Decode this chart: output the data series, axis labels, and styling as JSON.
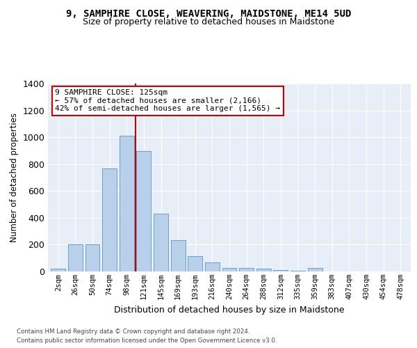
{
  "title": "9, SAMPHIRE CLOSE, WEAVERING, MAIDSTONE, ME14 5UD",
  "subtitle": "Size of property relative to detached houses in Maidstone",
  "xlabel": "Distribution of detached houses by size in Maidstone",
  "ylabel": "Number of detached properties",
  "categories": [
    "2sqm",
    "26sqm",
    "50sqm",
    "74sqm",
    "98sqm",
    "121sqm",
    "145sqm",
    "169sqm",
    "193sqm",
    "216sqm",
    "240sqm",
    "264sqm",
    "288sqm",
    "312sqm",
    "335sqm",
    "359sqm",
    "383sqm",
    "407sqm",
    "430sqm",
    "454sqm",
    "478sqm"
  ],
  "values": [
    20,
    200,
    200,
    770,
    1010,
    895,
    430,
    235,
    115,
    70,
    25,
    25,
    20,
    10,
    5,
    25,
    0,
    0,
    0,
    0,
    0
  ],
  "bar_color": "#b8d0ea",
  "bar_edge_color": "#6aa0cc",
  "vline_color": "#cc0000",
  "vline_x_index": 5,
  "annotation_text": "9 SAMPHIRE CLOSE: 125sqm\n← 57% of detached houses are smaller (2,166)\n42% of semi-detached houses are larger (1,565) →",
  "annotation_box_facecolor": "#ffffff",
  "annotation_box_edgecolor": "#cc0000",
  "ylim": [
    0,
    1400
  ],
  "yticks": [
    0,
    200,
    400,
    600,
    800,
    1000,
    1200,
    1400
  ],
  "plot_bg_color": "#e8eef8",
  "fig_bg_color": "#ffffff",
  "grid_color": "#ffffff",
  "footer1": "Contains HM Land Registry data © Crown copyright and database right 2024.",
  "footer2": "Contains public sector information licensed under the Open Government Licence v3.0."
}
